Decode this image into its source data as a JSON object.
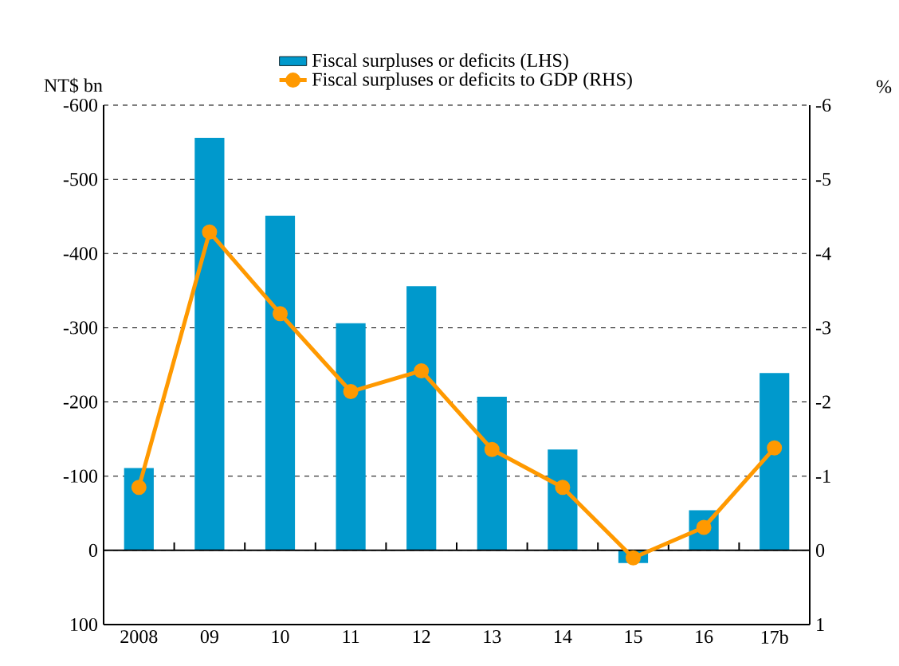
{
  "chart_data": {
    "type": "bar",
    "categories": [
      "2008",
      "09",
      "10",
      "11",
      "12",
      "13",
      "14",
      "15",
      "16",
      "17b"
    ],
    "ylabel": "NT$ bn",
    "y2label": "%",
    "ylim": [
      100,
      -600
    ],
    "yticks": [
      -600,
      -500,
      -400,
      -300,
      -200,
      -100,
      0,
      100
    ],
    "y2lim": [
      1,
      -6
    ],
    "y2ticks": [
      -6,
      -5,
      -4,
      -3,
      -2,
      -1,
      0,
      1
    ],
    "grid": "y",
    "legend": "top",
    "series": [
      {
        "name": "Fiscal surpluses or deficits (LHS)",
        "color": "#0099cc",
        "values": [
          -111,
          -556,
          -451,
          -306,
          -356,
          -207,
          -136,
          17,
          -54,
          -239
        ]
      },
      {
        "name": "Fiscal surpluses or deficits  to GDP (RHS)",
        "type": "line",
        "axis": "y2",
        "marker": "circle",
        "line_style": "solid",
        "color": "#ff9900",
        "values": [
          -0.85,
          -4.29,
          -3.19,
          -2.14,
          -2.42,
          -1.36,
          -0.85,
          0.1,
          -0.31,
          -1.38
        ]
      }
    ]
  }
}
